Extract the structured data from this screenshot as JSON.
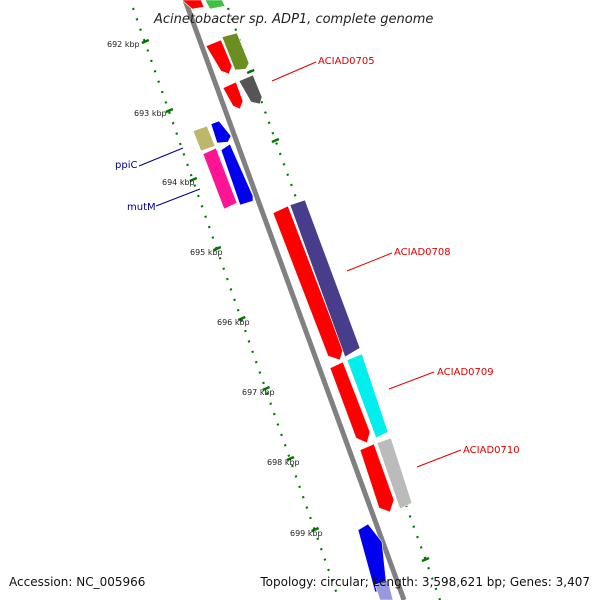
{
  "title": "Acinetobacter sp. ADP1, complete genome",
  "footer": {
    "accession": "Accession: NC_005966",
    "summary": "Topology: circular; Length: 3,598,621 bp; Genes: 3,407"
  },
  "ruler": {
    "ticks": [
      "692 kbp",
      "693 kbp",
      "694 kbp",
      "695 kbp",
      "696 kbp",
      "697 kbp",
      "698 kbp",
      "699 kbp"
    ],
    "tick_color": "#007700"
  },
  "backbone_color": "#808080",
  "genes": [
    {
      "name": "ACIAD0705",
      "label_color": "#dd0000"
    },
    {
      "name": "ACIAD0708",
      "label_color": "#dd0000"
    },
    {
      "name": "ACIAD0709",
      "label_color": "#dd0000"
    },
    {
      "name": "ACIAD0710",
      "label_color": "#dd0000"
    },
    {
      "name": "ppiC",
      "label_color": "#00008b"
    },
    {
      "name": "mutM",
      "label_color": "#00008b"
    }
  ],
  "feature_colors": {
    "cds": "#ff0000",
    "cog_green": "#40c040",
    "cog_olive": "#6b8e23",
    "cog_darkgray": "#555555",
    "cog_khaki": "#bdb76b",
    "cog_blue": "#0000ee",
    "cog_pink": "#ff1493",
    "cog_slate": "#483d8b",
    "cog_cyan": "#00eeee",
    "cog_silver": "#bbbbbb"
  }
}
